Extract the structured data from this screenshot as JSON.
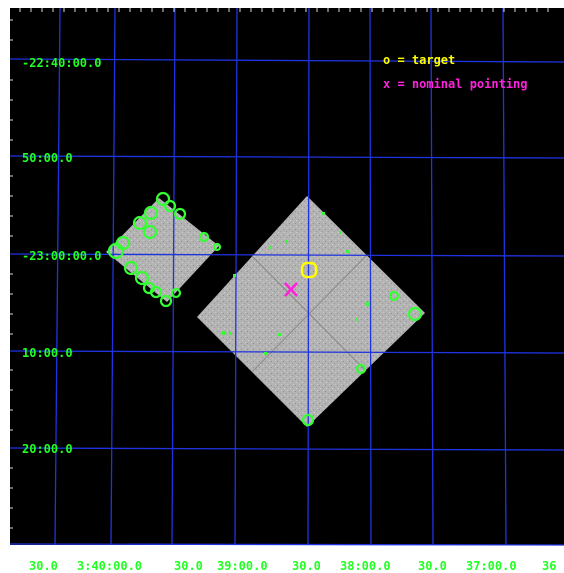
{
  "colors": {
    "background": "#000000",
    "grid": "#1f33e0",
    "label": "#22ff22",
    "target": "#ffff00",
    "pointing": "#ff22dd",
    "source": "#33ff33",
    "chip": "#b5b5b5"
  },
  "legend": {
    "target_text": "o = target",
    "pointing_text": "x = nominal pointing"
  },
  "dec_labels": [
    "-22:40:00.0",
    "50:00.0",
    "-23:00:00.0",
    "10:00.0",
    "20:00.0"
  ],
  "ra_labels": [
    "30.0",
    "3:40:00.0",
    "30.0",
    "39:00.0",
    "30.0",
    "38:00.0",
    "30.0",
    "37:00.0",
    "36"
  ],
  "markers": {
    "target_symbol": "o",
    "pointing_symbol": "x"
  }
}
